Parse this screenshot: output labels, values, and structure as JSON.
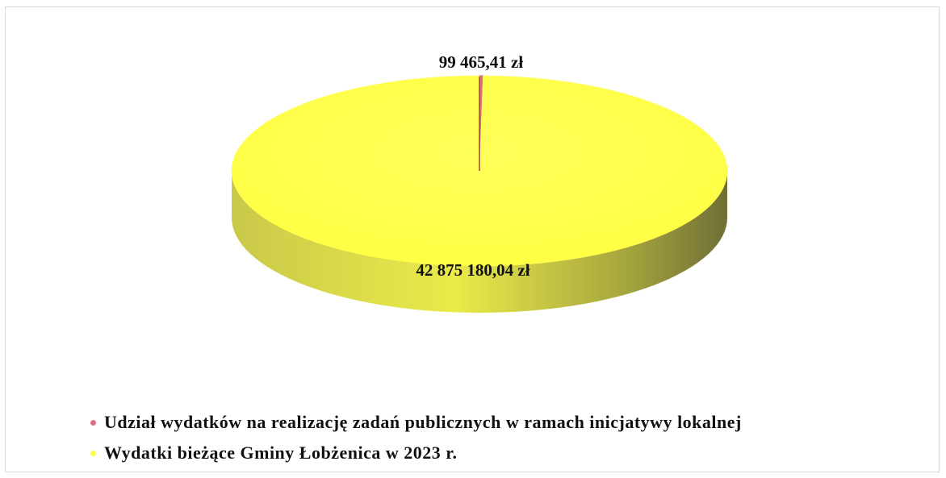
{
  "chart_data": {
    "type": "pie",
    "title": "",
    "three_d": true,
    "slices": [
      {
        "name": "Udział wydatków na realizację zadań publicznych w ramach inicjatywy lokalnej",
        "value": 99465.41,
        "label": "99 465,41 zł",
        "color": "#d9727f"
      },
      {
        "name": "Wydatki bieżące Gminy Łobżenica w 2023 r.",
        "value": 42875180.04,
        "label": "42 875 180,04 zł",
        "color": "#ffff4d"
      }
    ],
    "legend": {
      "position": "bottom",
      "entries": [
        "Udział wydatków na realizację zadań publicznych w ramach inicjatywy lokalnej",
        "Wydatki bieżące Gminy Łobżenica w 2023 r."
      ]
    }
  },
  "colors": {
    "main_top": "#ffff4d",
    "main_side": "#8f8f3a",
    "small_slice": "#d9727f",
    "border": "#d9d9d9"
  }
}
